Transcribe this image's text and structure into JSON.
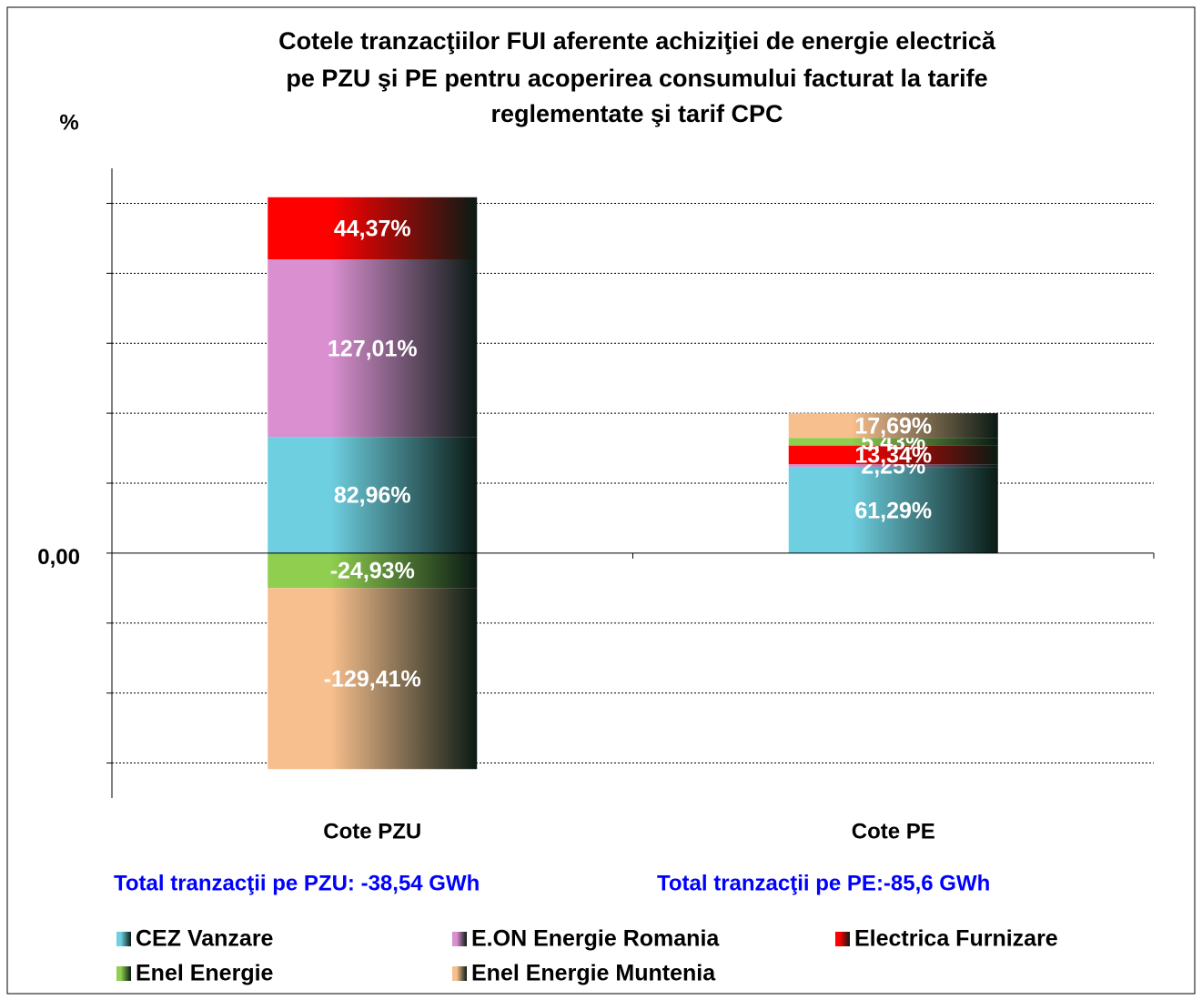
{
  "chart_data": {
    "type": "stacked_bar",
    "title": [
      "Cotele tranzacţiilor FUI aferente achiziţiei de energie electrică",
      "pe PZU şi PE pentru acoperirea consumului facturat  la tarife",
      "reglementate şi tarif  CPC"
    ],
    "ylabel": "%",
    "categories": [
      "Cote PZU",
      "Cote PE"
    ],
    "annotations": [
      "Total  tranzacţii pe PZU:  -38,54 GWh",
      "Total tranzacţii pe PE:-85,6 GWh"
    ],
    "series": [
      {
        "name": "CEZ Vanzare",
        "color": "#6ecfe0",
        "values": [
          82.96,
          61.29
        ],
        "value_labels": [
          "82,96%",
          "61,29%"
        ]
      },
      {
        "name": "E.ON Energie Romania",
        "color": "#d98fd0",
        "values": [
          127.01,
          2.25
        ],
        "value_labels": [
          "127,01%",
          "2,25%"
        ]
      },
      {
        "name": "Electrica Furnizare",
        "color": "#ff0000",
        "values": [
          44.37,
          13.34
        ],
        "value_labels": [
          "44,37%",
          "13,34%"
        ]
      },
      {
        "name": "Enel Energie",
        "color": "#8fce4f",
        "values": [
          -24.93,
          5.43
        ],
        "value_labels": [
          "-24,93%",
          "5,43%"
        ]
      },
      {
        "name": "Enel Energie Muntenia",
        "color": "#f7bf8d",
        "values": [
          -129.41,
          17.69
        ],
        "value_labels": [
          "-129,41%",
          "17,69%"
        ]
      }
    ],
    "ylim": [
      -175,
      275
    ],
    "yticks": [
      {
        "value": 0,
        "label": "0,00"
      }
    ],
    "grid_ticks": [
      -150,
      -100,
      -50,
      50,
      100,
      150,
      200,
      250
    ],
    "grid": true
  }
}
